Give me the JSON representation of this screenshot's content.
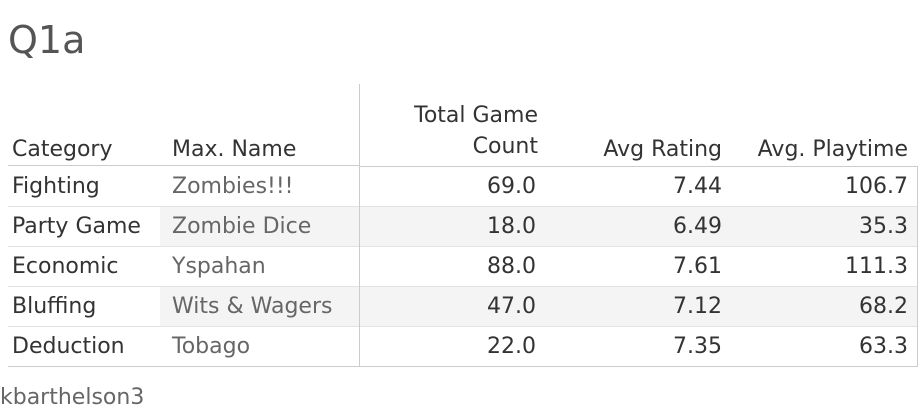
{
  "title": "Q1a",
  "footer": "kbarthelson3",
  "chart_data": {
    "type": "table",
    "title": "Q1a",
    "columns": [
      "Category",
      "Max. Name",
      "Total Game Count",
      "Avg Rating",
      "Avg. Playtime"
    ],
    "header": {
      "category": "Category",
      "max_name": "Max. Name",
      "total_line1": "Total Game",
      "total_line2": "Count",
      "avg_rating": "Avg Rating",
      "avg_playtime": "Avg. Playtime"
    },
    "rows": [
      {
        "category": "Fighting",
        "max_name": "Zombies!!!",
        "total_game_count": "69.0",
        "avg_rating": "7.44",
        "avg_playtime": "106.7"
      },
      {
        "category": "Party Game",
        "max_name": "Zombie Dice",
        "total_game_count": "18.0",
        "avg_rating": "6.49",
        "avg_playtime": "35.3"
      },
      {
        "category": "Economic",
        "max_name": "Yspahan",
        "total_game_count": "88.0",
        "avg_rating": "7.61",
        "avg_playtime": "111.3"
      },
      {
        "category": "Bluffing",
        "max_name": "Wits & Wagers",
        "total_game_count": "47.0",
        "avg_rating": "7.12",
        "avg_playtime": "68.2"
      },
      {
        "category": "Deduction",
        "max_name": "Tobago",
        "total_game_count": "22.0",
        "avg_rating": "7.35",
        "avg_playtime": "63.3"
      }
    ]
  }
}
